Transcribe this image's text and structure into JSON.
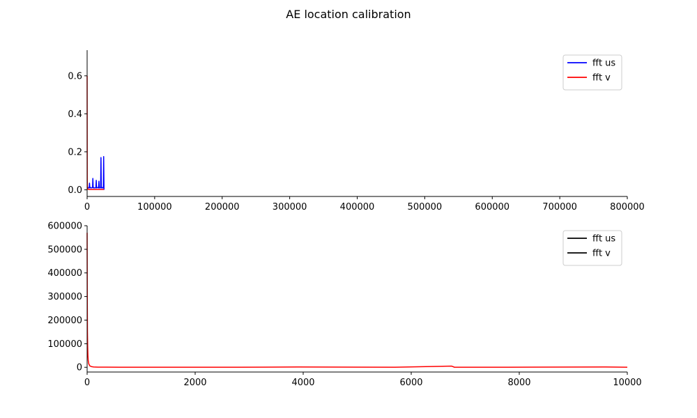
{
  "figure": {
    "title": "AE location calibration"
  },
  "chart_data": [
    {
      "type": "line",
      "title": "",
      "xlabel": "",
      "ylabel": "",
      "xlim": [
        0,
        800000
      ],
      "ylim": [
        -0.035,
        0.735
      ],
      "xticks": [
        0,
        100000,
        200000,
        300000,
        400000,
        500000,
        600000,
        700000,
        800000
      ],
      "yticks": [
        0.0,
        0.2,
        0.4,
        0.6
      ],
      "ytick_labels": [
        "0.0",
        "0.2",
        "0.4",
        "0.6"
      ],
      "grid": false,
      "legend_position": "top-right",
      "series": [
        {
          "name": "fft us",
          "color": "#0000ff",
          "x": [
            0,
            1000,
            2000,
            3000,
            3500,
            4000,
            5000,
            6000,
            7000,
            8000,
            8500,
            9000,
            10000,
            12000,
            13000,
            13500,
            14000,
            15000,
            16000,
            17000,
            17500,
            18000,
            19000,
            20000,
            20500,
            21000,
            22000,
            22500,
            23000,
            24000,
            24500,
            25000
          ],
          "y": [
            0.01,
            0.012,
            0.01,
            0.011,
            0.035,
            0.01,
            0.012,
            0.01,
            0.011,
            0.012,
            0.06,
            0.01,
            0.011,
            0.01,
            0.012,
            0.05,
            0.01,
            0.011,
            0.012,
            0.01,
            0.045,
            0.011,
            0.01,
            0.012,
            0.17,
            0.01,
            0.011,
            0.012,
            0.01,
            0.011,
            0.175,
            0.0
          ]
        },
        {
          "name": "fft v",
          "color": "#ff0000",
          "x": [
            0,
            200,
            400,
            800,
            1500,
            3000,
            6000,
            10000,
            15000,
            20000,
            25000
          ],
          "y": [
            0.6,
            0.05,
            0.01,
            0.004,
            0.003,
            0.002,
            0.002,
            0.002,
            0.002,
            0.002,
            0.002
          ]
        }
      ]
    },
    {
      "type": "line",
      "title": "",
      "xlabel": "",
      "ylabel": "",
      "xlim": [
        0,
        10000
      ],
      "ylim": [
        -20000,
        600000
      ],
      "xticks": [
        0,
        2000,
        4000,
        6000,
        8000,
        10000
      ],
      "yticks": [
        0,
        100000,
        200000,
        300000,
        400000,
        500000,
        600000
      ],
      "ytick_labels": [
        "0",
        "100000",
        "200000",
        "300000",
        "400000",
        "500000",
        "600000"
      ],
      "grid": false,
      "legend_position": "top-right",
      "legend_entries": [
        {
          "name": "fft us",
          "color": "#000000"
        },
        {
          "name": "fft v",
          "color": "#000000"
        }
      ],
      "series": [
        {
          "name": "fft v",
          "color": "#ff0000",
          "x": [
            0,
            3,
            6,
            10,
            15,
            20,
            30,
            50,
            80,
            120,
            200,
            350,
            600,
            1000,
            1800,
            2100,
            2800,
            3900,
            5700,
            6750,
            6800,
            7800,
            9600,
            10000
          ],
          "y": [
            570000,
            300000,
            150000,
            90000,
            50000,
            30000,
            15000,
            6000,
            3000,
            1500,
            800,
            500,
            400,
            300,
            300,
            250,
            200,
            1500,
            200,
            5000,
            300,
            200,
            1500,
            200
          ]
        }
      ]
    }
  ]
}
